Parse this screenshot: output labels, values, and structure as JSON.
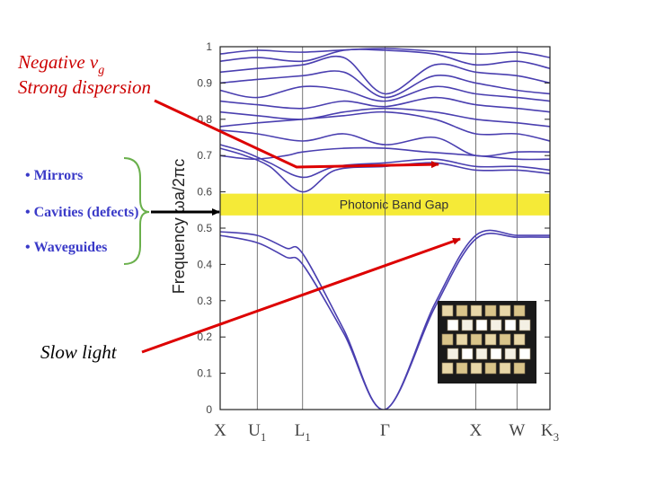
{
  "annotations": {
    "negative_vg_main": "Negative v",
    "negative_vg_sub": "g",
    "strong_dispersion": "Strong dispersion",
    "slow_light": "Slow light",
    "bullets": [
      "Mirrors",
      "Cavities (defects)",
      "Waveguides"
    ],
    "bullet_marker": "•",
    "annotation_color": "#cc0000",
    "bullet_color": "#3a3ac8",
    "bracket_color": "#6ab04c"
  },
  "inset": {
    "description_name": "photonic-crystal-inset"
  },
  "chart_data": {
    "type": "line",
    "title": "",
    "ylabel": "Frequency ωa/2πc",
    "ylim": [
      0,
      1
    ],
    "yticks": [
      "0",
      "0.1",
      "0.2",
      "0.3",
      "0.4",
      "0.5",
      "0.6",
      "0.7",
      "0.8",
      "0.9",
      "1"
    ],
    "ytick_values": [
      0,
      0.1,
      0.2,
      0.3,
      0.4,
      0.5,
      0.6,
      0.7,
      0.8,
      0.9,
      1
    ],
    "kpoints": [
      {
        "main": "X",
        "sub": "",
        "k": 0
      },
      {
        "main": "U",
        "sub": "1",
        "k": 0.45
      },
      {
        "main": "L",
        "sub": "1",
        "k": 1.0
      },
      {
        "main": "Γ",
        "sub": "",
        "k": 2.0
      },
      {
        "main": "X",
        "sub": "",
        "k": 3.1
      },
      {
        "main": "W",
        "sub": "",
        "k": 3.6
      },
      {
        "main": "K",
        "sub": "3",
        "k": 4.0
      }
    ],
    "kmax": 4.0,
    "band_gap": {
      "label": "Photonic Band Gap",
      "ymin": 0.535,
      "ymax": 0.595
    },
    "series": [
      {
        "name": "band-1",
        "k": [
          0,
          0.45,
          0.8,
          1.0,
          1.5,
          2.0,
          2.6,
          3.1,
          3.6,
          4.0
        ],
        "y": [
          0.48,
          0.46,
          0.42,
          0.4,
          0.21,
          0.0,
          0.28,
          0.47,
          0.475,
          0.475
        ]
      },
      {
        "name": "band-2",
        "k": [
          0,
          0.45,
          0.8,
          1.0,
          1.5,
          2.0,
          2.6,
          3.1,
          3.6,
          4.0
        ],
        "y": [
          0.49,
          0.48,
          0.445,
          0.43,
          0.22,
          0.0,
          0.29,
          0.48,
          0.48,
          0.48
        ]
      },
      {
        "name": "band-3",
        "k": [
          0,
          0.3,
          0.6,
          1.0,
          1.4,
          2.0,
          2.6,
          3.1,
          3.6,
          4.0
        ],
        "y": [
          0.72,
          0.7,
          0.67,
          0.6,
          0.66,
          0.67,
          0.68,
          0.66,
          0.66,
          0.65
        ]
      },
      {
        "name": "band-4",
        "k": [
          0,
          0.3,
          0.6,
          1.0,
          1.4,
          2.0,
          2.6,
          3.1,
          3.6,
          4.0
        ],
        "y": [
          0.73,
          0.71,
          0.68,
          0.64,
          0.67,
          0.68,
          0.69,
          0.67,
          0.67,
          0.66
        ]
      },
      {
        "name": "band-5",
        "k": [
          0,
          0.4,
          0.8,
          1.0,
          1.5,
          2.0,
          2.5,
          3.1,
          3.6,
          4.0
        ],
        "y": [
          0.7,
          0.69,
          0.7,
          0.71,
          0.72,
          0.72,
          0.71,
          0.7,
          0.69,
          0.69
        ]
      },
      {
        "name": "band-6",
        "k": [
          0,
          0.45,
          1.0,
          1.5,
          2.0,
          2.6,
          3.1,
          3.6,
          4.0
        ],
        "y": [
          0.77,
          0.76,
          0.74,
          0.76,
          0.73,
          0.75,
          0.7,
          0.71,
          0.71
        ]
      },
      {
        "name": "band-7",
        "k": [
          0,
          0.45,
          1.0,
          1.5,
          2.0,
          2.6,
          3.1,
          3.6,
          4.0
        ],
        "y": [
          0.78,
          0.79,
          0.8,
          0.81,
          0.82,
          0.8,
          0.76,
          0.76,
          0.74
        ]
      },
      {
        "name": "band-8",
        "k": [
          0,
          0.45,
          1.0,
          1.5,
          2.0,
          2.6,
          3.1,
          3.6,
          4.0
        ],
        "y": [
          0.82,
          0.81,
          0.8,
          0.82,
          0.83,
          0.82,
          0.8,
          0.79,
          0.78
        ]
      },
      {
        "name": "band-9",
        "k": [
          0,
          0.45,
          1.0,
          1.5,
          2.0,
          2.6,
          3.1,
          3.6,
          4.0
        ],
        "y": [
          0.85,
          0.84,
          0.83,
          0.85,
          0.835,
          0.86,
          0.84,
          0.83,
          0.82
        ]
      },
      {
        "name": "band-10",
        "k": [
          0,
          0.45,
          1.0,
          1.5,
          2.0,
          2.6,
          3.1,
          3.6,
          4.0
        ],
        "y": [
          0.88,
          0.86,
          0.89,
          0.88,
          0.85,
          0.89,
          0.87,
          0.86,
          0.85
        ]
      },
      {
        "name": "band-11",
        "k": [
          0,
          0.45,
          1.0,
          1.5,
          2.0,
          2.6,
          3.1,
          3.6,
          4.0
        ],
        "y": [
          0.9,
          0.91,
          0.92,
          0.93,
          0.86,
          0.92,
          0.9,
          0.88,
          0.87
        ]
      },
      {
        "name": "band-12",
        "k": [
          0,
          0.45,
          1.0,
          1.5,
          2.0,
          2.6,
          3.1,
          3.6,
          4.0
        ],
        "y": [
          0.93,
          0.94,
          0.95,
          0.97,
          0.87,
          0.95,
          0.93,
          0.92,
          0.9
        ]
      },
      {
        "name": "band-13",
        "k": [
          0,
          0.45,
          1.0,
          1.5,
          2.0,
          2.6,
          3.1,
          3.6,
          4.0
        ],
        "y": [
          0.96,
          0.97,
          0.96,
          0.99,
          0.99,
          0.98,
          0.95,
          0.96,
          0.94
        ]
      },
      {
        "name": "band-14",
        "k": [
          0,
          0.45,
          1.0,
          2.0,
          3.1,
          3.6,
          4.0
        ],
        "y": [
          0.98,
          0.99,
          0.985,
          0.995,
          0.98,
          0.985,
          0.97
        ]
      }
    ],
    "line_color": "#4a3fb0",
    "gap_color": "#f5ea37"
  }
}
